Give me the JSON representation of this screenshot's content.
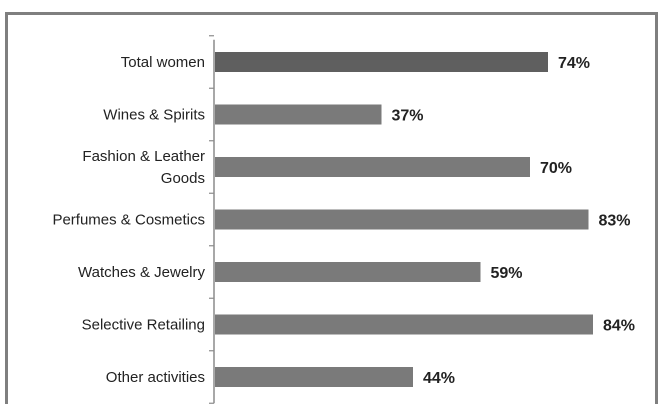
{
  "chart_data": {
    "type": "bar",
    "orientation": "horizontal",
    "categories": [
      "Total women",
      "Wines & Spirits",
      "Fashion & Leather Goods",
      "Perfumes & Cosmetics",
      "Watches & Jewelry",
      "Selective Retailing",
      "Other activities"
    ],
    "category_lines": [
      [
        "Total women"
      ],
      [
        "Wines & Spirits"
      ],
      [
        "Fashion & Leather",
        "Goods"
      ],
      [
        "Perfumes & Cosmetics"
      ],
      [
        "Watches & Jewelry"
      ],
      [
        "Selective Retailing"
      ],
      [
        "Other activities"
      ]
    ],
    "values": [
      74,
      37,
      70,
      83,
      59,
      84,
      44
    ],
    "value_labels": [
      "74%",
      "37%",
      "70%",
      "83%",
      "59%",
      "84%",
      "44%"
    ],
    "xlim": [
      0,
      100
    ],
    "title": "",
    "xlabel": "",
    "ylabel": "",
    "grid": false,
    "legend": "none",
    "colors": {
      "highlight_bar": "#5f5f5f",
      "bar": "#7a7a7a",
      "axis": "#8c8c8c",
      "frame": "#7f7f7f",
      "text": "#222222"
    }
  }
}
